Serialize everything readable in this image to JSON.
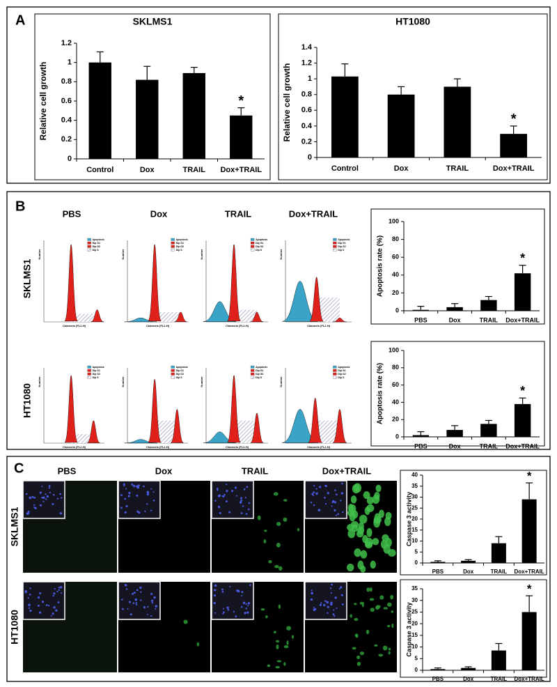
{
  "panel_labels": [
    "A",
    "B",
    "C"
  ],
  "column_headers": [
    "PBS",
    "Dox",
    "TRAIL",
    "Dox+TRAIL"
  ],
  "row_labels": [
    "SKLMS1",
    "HT1080"
  ],
  "flow_legend": [
    "Apoptosis",
    "Dip G1",
    "Dip G2",
    "Dip S"
  ],
  "flow_x_label": "Channels (FL2-H)",
  "flow_y_label": "Number",
  "chart_data": [
    {
      "type": "bar",
      "title": "SKLMS1",
      "y_label": "Relative cell growth",
      "categories": [
        "Control",
        "Dox",
        "TRAIL",
        "Dox+TRAIL"
      ],
      "values": [
        1.0,
        0.82,
        0.89,
        0.45
      ],
      "errors": [
        0.11,
        0.14,
        0.06,
        0.08
      ],
      "color": "#000000",
      "ylim": [
        0,
        1.2
      ],
      "yticks": [
        0,
        0.2,
        0.4,
        0.6,
        0.8,
        1,
        1.2
      ],
      "annotations": [
        {
          "text": "*",
          "category": "Dox+TRAIL"
        }
      ]
    },
    {
      "type": "bar",
      "title": "HT1080",
      "y_label": "Relative cell growth",
      "categories": [
        "Control",
        "Dox",
        "TRAIL",
        "Dox+TRAIL"
      ],
      "values": [
        1.03,
        0.8,
        0.9,
        0.3
      ],
      "errors": [
        0.16,
        0.1,
        0.1,
        0.1
      ],
      "color": "#000000",
      "ylim": [
        0,
        1.4
      ],
      "yticks": [
        0,
        0.2,
        0.4,
        0.6,
        0.8,
        1,
        1.2,
        1.4
      ],
      "annotations": [
        {
          "text": "*",
          "category": "Dox+TRAIL"
        }
      ]
    },
    {
      "type": "bar",
      "y_label": "Apoptosis rate (%)",
      "categories": [
        "PBS",
        "Dox",
        "TRAIL",
        "Dox+TRAIL"
      ],
      "values": [
        1,
        4,
        12,
        42
      ],
      "errors": [
        4,
        4,
        4,
        9
      ],
      "color": "#000000",
      "ylim": [
        0,
        100
      ],
      "yticks": [
        0,
        20,
        40,
        60,
        80,
        100
      ],
      "annotations": [
        {
          "text": "*",
          "category": "Dox+TRAIL"
        }
      ]
    },
    {
      "type": "bar",
      "y_label": "Apoptosis rate (%)",
      "categories": [
        "PBS",
        "Dox",
        "TRAIL",
        "Dox+TRAIL"
      ],
      "values": [
        2,
        8,
        15,
        38
      ],
      "errors": [
        4,
        5,
        4,
        7
      ],
      "color": "#000000",
      "ylim": [
        0,
        100
      ],
      "yticks": [
        0,
        20,
        40,
        60,
        80,
        100
      ],
      "annotations": [
        {
          "text": "*",
          "category": "Dox+TRAIL"
        }
      ]
    },
    {
      "type": "bar",
      "y_label": "Caspase 3 activity",
      "categories": [
        "PBS",
        "Dox",
        "TRAIL",
        "Dox+TRAIL"
      ],
      "values": [
        0.5,
        1,
        9,
        29
      ],
      "errors": [
        0.5,
        0.5,
        3,
        7.5
      ],
      "color": "#000000",
      "ylim": [
        0,
        40
      ],
      "yticks": [
        0,
        5,
        10,
        15,
        20,
        25,
        30,
        35,
        40
      ],
      "annotations": [
        {
          "text": "*",
          "category": "Dox+TRAIL"
        }
      ]
    },
    {
      "type": "bar",
      "y_label": "Caspase 3 activity",
      "categories": [
        "PBS",
        "Dox",
        "TRAIL",
        "Dox+TRAIL"
      ],
      "values": [
        0.5,
        1,
        8.5,
        25
      ],
      "errors": [
        0.5,
        0.5,
        3,
        7
      ],
      "color": "#000000",
      "ylim": [
        0,
        35
      ],
      "yticks": [
        0,
        5,
        10,
        15,
        20,
        25,
        30,
        35
      ],
      "annotations": [
        {
          "text": "*",
          "category": "Dox+TRAIL"
        }
      ]
    }
  ]
}
